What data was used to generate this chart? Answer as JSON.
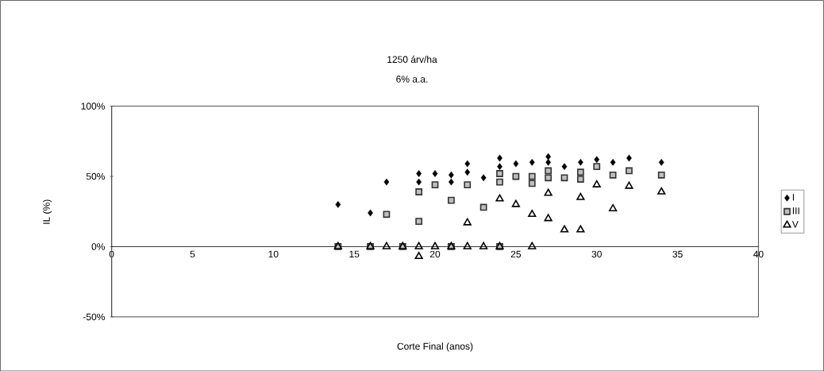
{
  "chart_data": {
    "type": "scatter",
    "title": "1250  árv/ha",
    "subtitle": "6% a.a.",
    "xlabel": "Corte Final (anos)",
    "ylabel": "IL (%)",
    "xlim": [
      0,
      40
    ],
    "xticks": [
      0,
      5,
      10,
      15,
      20,
      25,
      30,
      35,
      40
    ],
    "ylim": [
      -50,
      100
    ],
    "yticks": [
      {
        "value": -50,
        "label": "-50%"
      },
      {
        "value": 0,
        "label": "0%"
      },
      {
        "value": 50,
        "label": "50%"
      },
      {
        "value": 100,
        "label": "100%"
      }
    ],
    "grid": false,
    "legend": "right",
    "series": [
      {
        "name": "I",
        "color": "#000000",
        "marker": "diamond",
        "x": [
          14,
          16,
          17,
          19,
          19,
          20,
          21,
          21,
          22,
          22,
          23,
          24,
          24,
          25,
          26,
          27,
          27,
          28,
          29,
          30,
          31,
          32,
          34
        ],
        "values": [
          30,
          24,
          46,
          52,
          46,
          52,
          51,
          46,
          59,
          53,
          49,
          63,
          57,
          59,
          60,
          64,
          60,
          57,
          60,
          62,
          60,
          63,
          60
        ]
      },
      {
        "name": "III",
        "color": "#333333",
        "marker": "square",
        "x": [
          14,
          16,
          17,
          18,
          19,
          19,
          20,
          21,
          21,
          22,
          23,
          24,
          24,
          24,
          25,
          26,
          26,
          27,
          27,
          28,
          29,
          29,
          30,
          31,
          32,
          34
        ],
        "values": [
          0,
          0,
          23,
          0,
          39,
          18,
          44,
          33,
          0,
          44,
          28,
          52,
          46,
          0,
          50,
          50,
          45,
          54,
          49,
          49,
          53,
          48,
          57,
          51,
          54,
          51
        ]
      },
      {
        "name": "V",
        "color": "#000000",
        "marker": "triangle",
        "x": [
          14,
          16,
          17,
          18,
          19,
          19,
          20,
          21,
          22,
          22,
          23,
          24,
          24,
          25,
          26,
          26,
          27,
          27,
          28,
          29,
          29,
          30,
          31,
          32,
          34
        ],
        "values": [
          0,
          0,
          0,
          0,
          0,
          -7,
          0,
          0,
          0,
          17,
          0,
          0,
          34,
          30,
          0,
          23,
          38,
          20,
          12,
          35,
          12,
          44,
          27,
          43,
          39
        ]
      }
    ]
  }
}
